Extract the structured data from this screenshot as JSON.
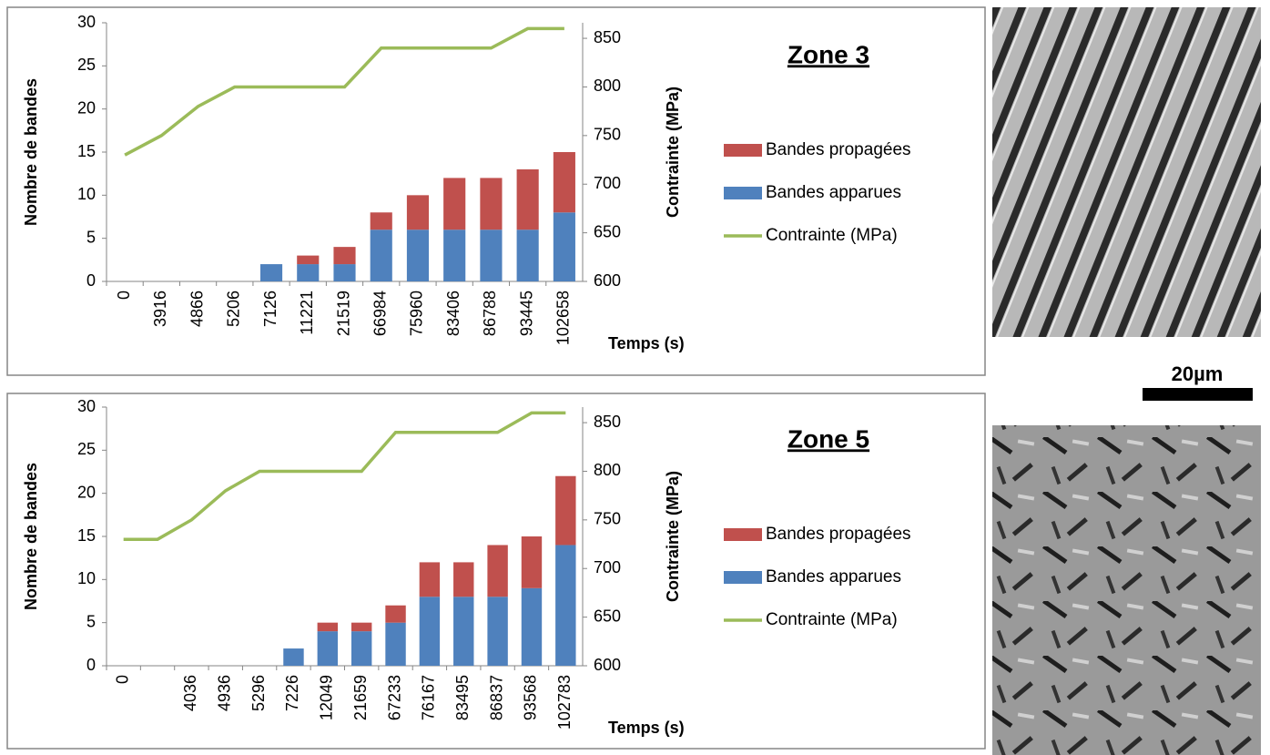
{
  "chart_data": [
    {
      "type": "bar",
      "title": "Zone 3",
      "categories": [
        "0",
        "3916",
        "4866",
        "5206",
        "7126",
        "11221",
        "21519",
        "66984",
        "75960",
        "83406",
        "86788",
        "93445",
        "102658"
      ],
      "x_label": "Temps (s)",
      "y_label": "Nombre de bandes",
      "y2_label": "Contrainte (MPa)",
      "series": [
        {
          "name": "Bandes apparues",
          "color": "#4f81bd",
          "values": [
            0,
            0,
            0,
            0,
            2,
            2,
            2,
            6,
            6,
            6,
            6,
            6,
            8
          ]
        },
        {
          "name": "Bandes propagées",
          "color": "#c0504d",
          "values": [
            0,
            0,
            0,
            0,
            0,
            1,
            2,
            2,
            4,
            6,
            6,
            7,
            7
          ]
        },
        {
          "name": "Contrainte (MPa)",
          "color": "#9bbb59",
          "type": "line",
          "axis": "y2",
          "values": [
            730,
            750,
            780,
            800,
            800,
            800,
            800,
            840,
            840,
            840,
            840,
            860,
            860
          ]
        }
      ],
      "ylim": [
        0,
        30
      ],
      "yticks": [
        0,
        5,
        10,
        15,
        20,
        25,
        30
      ],
      "y2lim": [
        600,
        866
      ],
      "y2ticks": [
        600,
        650,
        700,
        750,
        800,
        850
      ],
      "stacked": true,
      "grid": false
    },
    {
      "type": "bar",
      "title": "Zone 5",
      "categories": [
        "0",
        null,
        "4036",
        "4936",
        "5296",
        "7226",
        "12049",
        "21659",
        "67233",
        "76167",
        "83495",
        "86837",
        "93568",
        "102783"
      ],
      "x_label": "Temps (s)",
      "y_label": "Nombre de bandes",
      "y2_label": "Contrainte (MPa)",
      "series": [
        {
          "name": "Bandes apparues",
          "color": "#4f81bd",
          "values": [
            0,
            0,
            0,
            0,
            0,
            2,
            4,
            4,
            5,
            8,
            8,
            8,
            9,
            14
          ]
        },
        {
          "name": "Bandes propagées",
          "color": "#c0504d",
          "values": [
            0,
            0,
            0,
            0,
            0,
            0,
            1,
            1,
            2,
            4,
            4,
            6,
            6,
            8
          ]
        },
        {
          "name": "Contrainte (MPa)",
          "color": "#9bbb59",
          "type": "line",
          "axis": "y2",
          "values": [
            730,
            730,
            750,
            780,
            800,
            800,
            800,
            800,
            840,
            840,
            840,
            840,
            860,
            860
          ]
        }
      ],
      "ylim": [
        0,
        30
      ],
      "yticks": [
        0,
        5,
        10,
        15,
        20,
        25,
        30
      ],
      "y2lim": [
        600,
        866
      ],
      "y2ticks": [
        600,
        650,
        700,
        750,
        800,
        850
      ],
      "stacked": true,
      "grid": false
    }
  ],
  "scale_bar": "20µm"
}
